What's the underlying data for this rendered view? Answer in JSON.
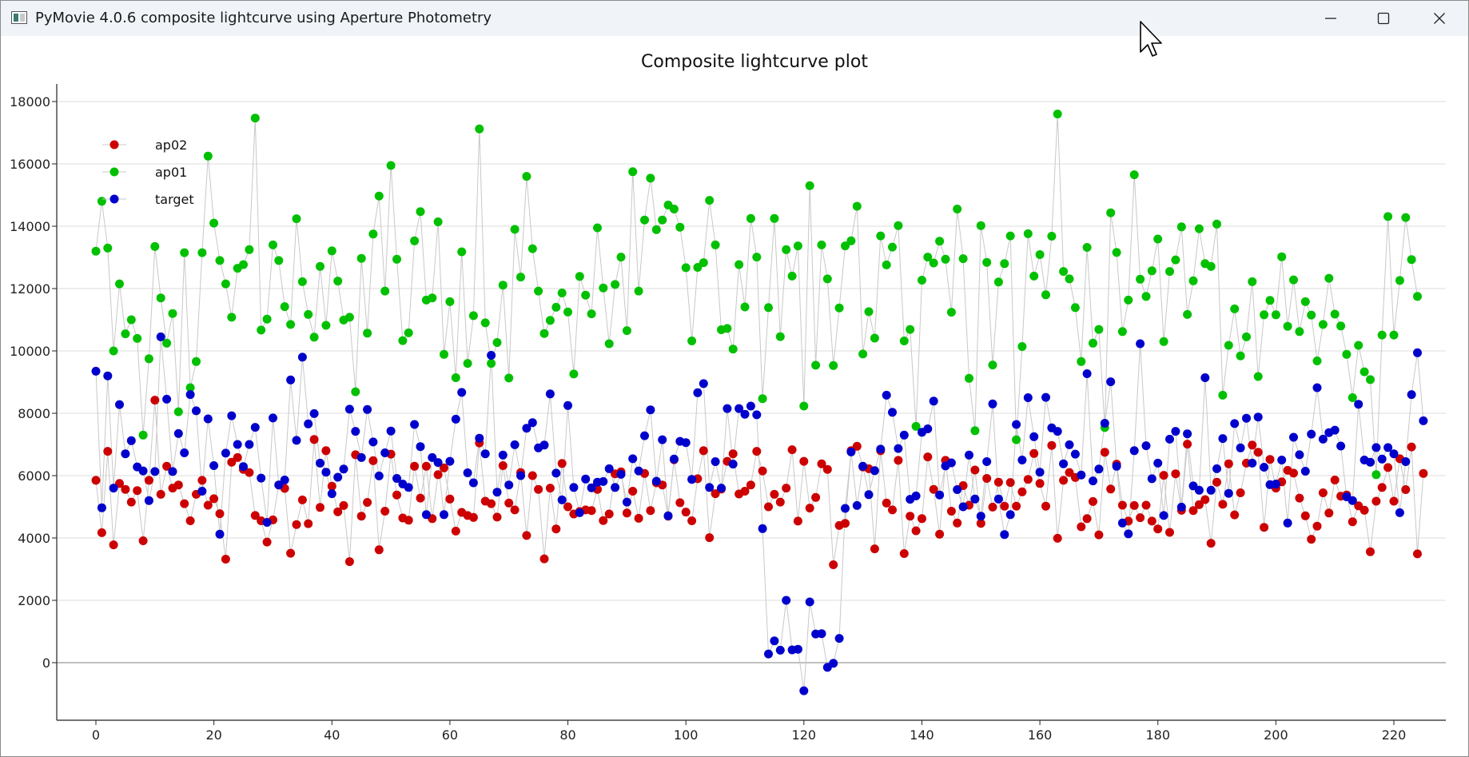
{
  "window": {
    "title": "PyMovie 4.0.6 composite lightcurve using Aperture Photometry"
  },
  "icons": {
    "app": "app-window-icon",
    "minimize": "minimize-icon",
    "maximize": "maximize-icon",
    "close": "close-icon",
    "cursor": "mouse-pointer-icon"
  },
  "chart_data": {
    "type": "scatter",
    "title": "Composite lightcurve plot",
    "xlabel": "",
    "ylabel": "",
    "xlim": [
      -6,
      229
    ],
    "ylim": [
      -1800,
      18600
    ],
    "xticks": [
      0,
      20,
      40,
      60,
      80,
      100,
      120,
      140,
      160,
      180,
      200,
      220
    ],
    "yticks": [
      0,
      2000,
      4000,
      6000,
      8000,
      10000,
      12000,
      14000,
      16000,
      18000
    ],
    "grid": true,
    "legend_position": "top-left",
    "connect_points": true,
    "line_color": "#c8c8c8",
    "series": [
      {
        "name": "ap02",
        "color": "#cc0000",
        "values": [
          5850,
          4170,
          6780,
          3780,
          5750,
          5560,
          5150,
          5520,
          3910,
          5850,
          8420,
          5400,
          6300,
          5600,
          5700,
          5100,
          4550,
          5400,
          5850,
          5050,
          5260,
          4780,
          3320,
          6430,
          6580,
          6200,
          6100,
          4720,
          4550,
          3870,
          4580,
          5700,
          5590,
          3510,
          4430,
          5220,
          4460,
          7160,
          4980,
          6800,
          5660,
          4840,
          5040,
          3240,
          6670,
          4700,
          5140,
          6480,
          3620,
          4860,
          6690,
          5380,
          4640,
          4570,
          6300,
          5280,
          6300,
          4620,
          6030,
          6250,
          5250,
          4220,
          4820,
          4720,
          4660,
          7050,
          5180,
          5100,
          4670,
          6320,
          5120,
          4900,
          6100,
          4080,
          6000,
          5560,
          3330,
          5600,
          4290,
          6390,
          5000,
          4770,
          4850,
          4900,
          4880,
          5560,
          4560,
          4770,
          6060,
          6120,
          4800,
          5500,
          4630,
          6070,
          4880,
          5770,
          5700,
          4700,
          6510,
          5130,
          4830,
          4550,
          5900,
          6800,
          4010,
          5420,
          5570,
          6460,
          6700,
          5410,
          5500,
          5700,
          6780,
          6150,
          5000,
          5400,
          5150,
          5600,
          6830,
          4540,
          6460,
          4960,
          5300,
          6380,
          6200,
          3140,
          4400,
          4470,
          6800,
          6940,
          6280,
          6220,
          3650,
          6800,
          5120,
          4900,
          6490,
          3500,
          4700,
          4230,
          4620,
          6600,
          5560,
          4120,
          6490,
          4860,
          4480,
          5680,
          5050,
          6180,
          4470,
          5910,
          4990,
          5790,
          5020,
          5780,
          5020,
          5480,
          5880,
          6710,
          5750,
          5020,
          6970,
          3990,
          5850,
          6100,
          5940,
          4360,
          4620,
          5170,
          4100,
          6750,
          5570,
          6370,
          5050,
          4540,
          5040,
          4650,
          5050,
          4540,
          4290,
          6010,
          4180,
          6060,
          4890,
          7010,
          4880,
          5070,
          5230,
          3830,
          5790,
          5080,
          6380,
          4740,
          5450,
          6400,
          6980,
          6750,
          4340,
          6520,
          5600,
          5800,
          6170,
          6080,
          5280,
          4710,
          3960,
          4380,
          5450,
          4800,
          5860,
          5340,
          5380,
          4520,
          5030,
          4890,
          3560,
          5180,
          5620,
          6260,
          5180,
          6540,
          5550,
          6920,
          3490,
          6070
        ]
      },
      {
        "name": "ap01",
        "color": "#00c000",
        "values": [
          13200,
          14800,
          13300,
          10000,
          12150,
          10550,
          11000,
          10400,
          7300,
          9750,
          13350,
          11700,
          10250,
          11200,
          8050,
          13150,
          8820,
          9660,
          13150,
          16250,
          14100,
          12900,
          12150,
          11080,
          12650,
          12770,
          13250,
          17470,
          10670,
          11020,
          13400,
          12900,
          11420,
          10850,
          14240,
          12220,
          11170,
          10440,
          12710,
          10820,
          13210,
          12240,
          10990,
          11080,
          8690,
          12970,
          10570,
          13750,
          14970,
          11920,
          15950,
          12940,
          10330,
          10580,
          13530,
          14470,
          11630,
          11700,
          14140,
          9890,
          11580,
          9140,
          13180,
          9600,
          11130,
          17120,
          10900,
          9600,
          10270,
          12110,
          9130,
          13900,
          12370,
          15600,
          13280,
          11920,
          10560,
          10980,
          11400,
          11860,
          11250,
          9260,
          12390,
          11790,
          11190,
          13950,
          12020,
          10230,
          12130,
          13010,
          10650,
          15750,
          11920,
          14200,
          15540,
          13890,
          14200,
          14680,
          14550,
          13970,
          12670,
          10320,
          12680,
          12830,
          14830,
          13400,
          10680,
          10720,
          10060,
          12770,
          11410,
          14250,
          13010,
          8470,
          11390,
          14250,
          10460,
          13250,
          12400,
          13370,
          8230,
          15300,
          9540,
          13400,
          12310,
          9530,
          11380,
          13370,
          13530,
          14640,
          9900,
          11260,
          10410,
          13690,
          12760,
          13330,
          14020,
          10320,
          10690,
          7580,
          12270,
          13010,
          12820,
          13520,
          12940,
          11240,
          14550,
          12960,
          9120,
          7440,
          14020,
          12840,
          9550,
          12210,
          12800,
          13690,
          7150,
          10140,
          13760,
          12400,
          13090,
          11800,
          13680,
          17600,
          12550,
          12310,
          11390,
          9660,
          13320,
          10250,
          10690,
          7540,
          14430,
          13160,
          10620,
          11630,
          15650,
          12300,
          11750,
          12570,
          13590,
          10300,
          12550,
          12920,
          13980,
          11170,
          12250,
          13920,
          12800,
          12710,
          14070,
          8580,
          10180,
          11350,
          9840,
          10450,
          12220,
          9180,
          11160,
          11620,
          11160,
          13020,
          10790,
          12280,
          10620,
          11580,
          11150,
          9680,
          10850,
          12330,
          11180,
          10800,
          9890,
          8500,
          10180,
          9330,
          9080,
          6030,
          10510,
          14310,
          10510,
          12260,
          14280,
          12930,
          11750
        ]
      },
      {
        "name": "target",
        "color": "#0000cc",
        "values": [
          9350,
          4970,
          9200,
          5600,
          8280,
          6700,
          7120,
          6280,
          6150,
          5200,
          6130,
          10450,
          8450,
          6130,
          7350,
          6730,
          8600,
          8080,
          5500,
          7820,
          6320,
          4120,
          6720,
          7920,
          7000,
          6290,
          7000,
          7550,
          5920,
          4500,
          7850,
          5700,
          5860,
          9070,
          7130,
          9800,
          7660,
          7990,
          6400,
          6110,
          5420,
          5950,
          6210,
          8130,
          7420,
          6580,
          8120,
          7080,
          5990,
          6730,
          7430,
          5910,
          5730,
          5620,
          7640,
          6930,
          4750,
          6580,
          6420,
          4750,
          6460,
          7810,
          8670,
          6090,
          5770,
          7200,
          6700,
          9860,
          5470,
          6660,
          5700,
          6990,
          6000,
          7520,
          7700,
          6890,
          6980,
          8620,
          6080,
          5220,
          8250,
          5620,
          4810,
          5890,
          5610,
          5790,
          5810,
          6220,
          5620,
          6040,
          5150,
          6540,
          6150,
          7280,
          8110,
          5820,
          7150,
          4710,
          6530,
          7100,
          7060,
          5880,
          8660,
          8950,
          5620,
          6450,
          5600,
          8150,
          6370,
          8150,
          7970,
          8230,
          7950,
          4300,
          280,
          700,
          400,
          2000,
          410,
          430,
          -900,
          1950,
          920,
          930,
          -150,
          -20,
          780,
          4950,
          6760,
          5040,
          6300,
          5390,
          6160,
          6850,
          8580,
          8030,
          6870,
          7300,
          5240,
          5350,
          7390,
          7500,
          8390,
          5380,
          6310,
          6410,
          5550,
          5000,
          6660,
          5250,
          4700,
          6450,
          8300,
          5250,
          4110,
          4750,
          7640,
          6500,
          8500,
          7250,
          6110,
          8510,
          7530,
          7420,
          6380,
          6990,
          6690,
          6020,
          9270,
          5830,
          6210,
          7680,
          9010,
          6300,
          4480,
          4130,
          6800,
          10230,
          6960,
          5900,
          6400,
          4720,
          7170,
          7420,
          4990,
          7340,
          5670,
          5530,
          9140,
          5530,
          6220,
          7190,
          5430,
          7670,
          6890,
          7840,
          6400,
          7880,
          6270,
          5710,
          5730,
          6500,
          4480,
          7230,
          6670,
          6140,
          7330,
          8820,
          7170,
          7380,
          7460,
          6950,
          5320,
          5200,
          8290,
          6500,
          6430,
          6900,
          6530,
          6900,
          6700,
          4810,
          6450,
          8600,
          9940,
          7760
        ]
      }
    ]
  }
}
